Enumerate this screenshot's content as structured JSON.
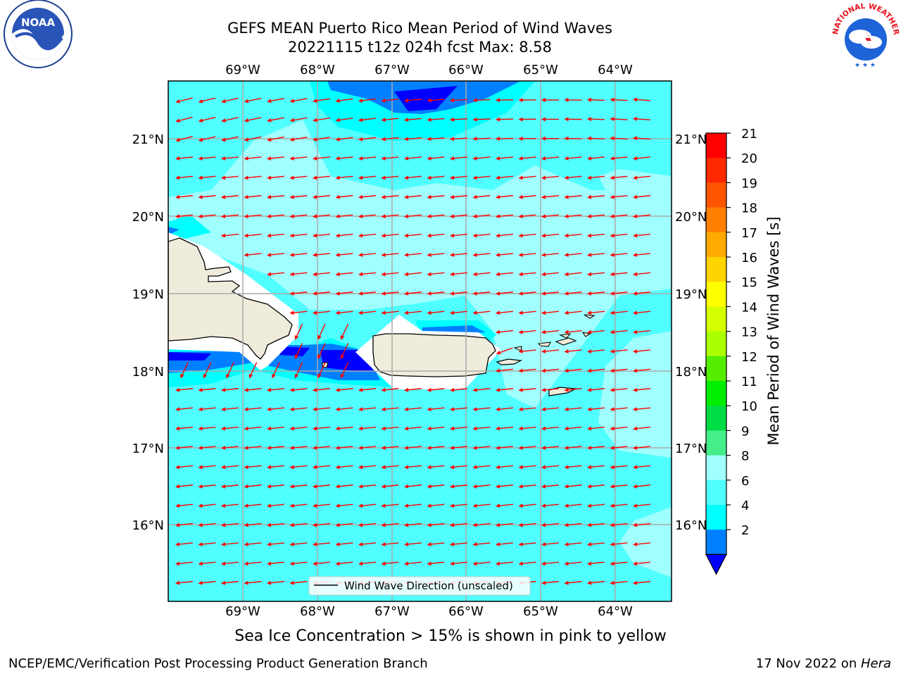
{
  "title": {
    "line1": "GEFS MEAN Puerto Rico Mean Period of Wind Waves",
    "line2": "20221115 t12z 024h fcst   Max: 8.58"
  },
  "map": {
    "lon_labels": [
      "69°W",
      "68°W",
      "67°W",
      "66°W",
      "65°W",
      "64°W"
    ],
    "lat_labels": [
      "21°N",
      "20°N",
      "19°N",
      "18°N",
      "17°N",
      "16°N"
    ],
    "legend_label": "Wind Wave Direction (unscaled)",
    "arrow_color": "#ff0000",
    "coast_color": "#000000",
    "land_color": "#efecdc"
  },
  "colorbar": {
    "label": "Mean Period of Wind Waves [s]",
    "ticks": [
      "21",
      "20",
      "19",
      "18",
      "17",
      "16",
      "15",
      "14",
      "13",
      "12",
      "11",
      "10",
      "9",
      "8",
      "6",
      "4",
      "2"
    ],
    "colors": [
      "#ff0000",
      "#ff2a00",
      "#ff5500",
      "#ff8000",
      "#ffaa00",
      "#ffd400",
      "#ffff00",
      "#d4ff00",
      "#aaff00",
      "#55ee00",
      "#00ee00",
      "#00dd44",
      "#44ee88",
      "#a0ffff",
      "#50ffff",
      "#00ffff",
      "#0080ff"
    ],
    "under_color": "#0000ff"
  },
  "footer": {
    "sea_ice_note": "Sea Ice Concentration > 15% is shown in pink to yellow",
    "left": "NCEP/EMC/Verification Post Processing Product Generation Branch",
    "right_prefix": "17 Nov 2022 on ",
    "right_italic": "Hera"
  },
  "logos": {
    "noaa_text": "NOAA",
    "nws_text": "NATIONAL WEATHER SERVICE"
  }
}
